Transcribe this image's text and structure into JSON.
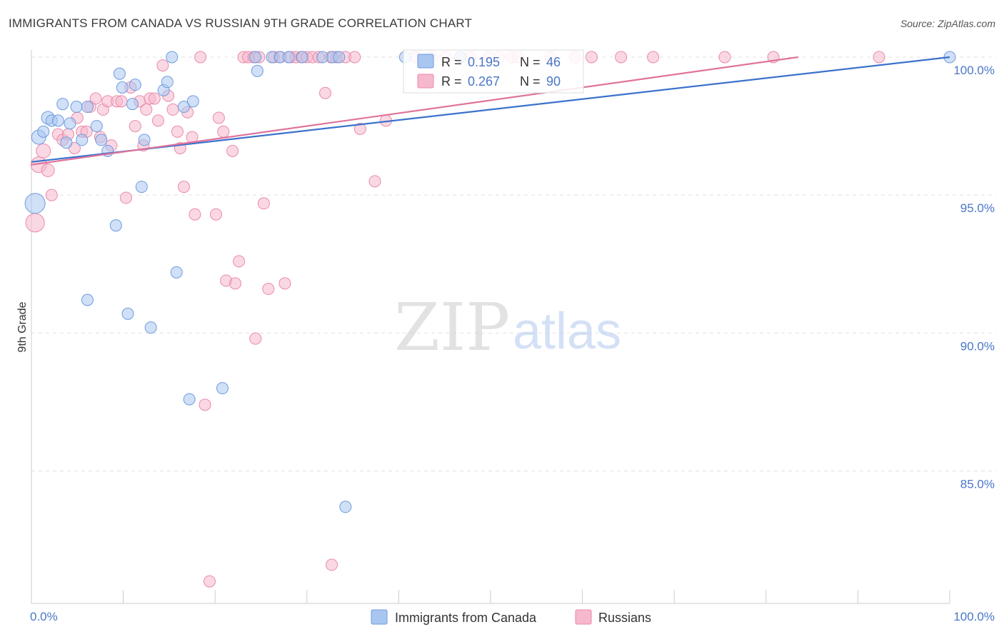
{
  "title": "IMMIGRANTS FROM CANADA VS RUSSIAN 9TH GRADE CORRELATION CHART",
  "source": "Source: ZipAtlas.com",
  "watermark": {
    "zip": "ZIP",
    "atlas": "atlas"
  },
  "colors": {
    "canada_fill": "#a9c6f0",
    "canada_stroke": "#6f9be0",
    "canada_line": "#3b72cc",
    "russia_fill": "#f6b8cc",
    "russia_stroke": "#e98aa9",
    "russia_line": "#e0739a",
    "grid": "#e2e2e2",
    "tick_text": "#4a77c8"
  },
  "stats_box": {
    "rows": [
      {
        "r_label": "R =",
        "r_value": "0.195",
        "n_label": "N =",
        "n_value": "46"
      },
      {
        "r_label": "R =",
        "r_value": "0.267",
        "n_label": "N =",
        "n_value": "90"
      }
    ]
  },
  "chart_data": {
    "type": "scatter",
    "title": "IMMIGRANTS FROM CANADA VS RUSSIAN 9TH GRADE CORRELATION CHART",
    "xlabel": "",
    "ylabel": "9th Grade",
    "xlim": [
      0,
      100
    ],
    "ylim": [
      80.2,
      100.7
    ],
    "x_ticks": [
      0,
      100
    ],
    "x_tick_labels": [
      "0.0%",
      "100.0%"
    ],
    "y_ticks": [
      85,
      90,
      95,
      100
    ],
    "y_tick_labels": [
      "85.0%",
      "90.0%",
      "95.0%",
      "100.0%"
    ],
    "grid": true,
    "legend_position": "bottom-center",
    "series": [
      {
        "name": "Immigrants from Canada",
        "R": 0.195,
        "N": 46,
        "trend": {
          "x0": 0,
          "y0": 96.2,
          "x1": 100,
          "y1": 100.0
        },
        "points": [
          [
            0.4,
            94.7,
            14
          ],
          [
            0.8,
            97.1,
            10
          ],
          [
            1.3,
            97.3,
            8
          ],
          [
            1.8,
            97.8,
            9
          ],
          [
            2.2,
            97.7,
            8
          ],
          [
            2.9,
            97.7,
            8
          ],
          [
            3.4,
            98.3,
            8
          ],
          [
            3.8,
            96.9,
            8
          ],
          [
            4.2,
            97.6,
            8
          ],
          [
            4.9,
            98.2,
            8
          ],
          [
            5.5,
            97.0,
            8
          ],
          [
            6.1,
            98.2,
            8
          ],
          [
            7.1,
            97.5,
            8
          ],
          [
            7.6,
            97.0,
            8
          ],
          [
            8.3,
            96.6,
            8
          ],
          [
            9.2,
            93.9,
            8
          ],
          [
            9.6,
            99.4,
            8
          ],
          [
            9.9,
            98.9,
            8
          ],
          [
            10.5,
            90.7,
            8
          ],
          [
            11.0,
            98.3,
            8
          ],
          [
            11.3,
            99.0,
            8
          ],
          [
            12.0,
            95.3,
            8
          ],
          [
            12.3,
            97.0,
            8
          ],
          [
            13.0,
            90.2,
            8
          ],
          [
            14.4,
            98.8,
            8
          ],
          [
            14.8,
            99.1,
            8
          ],
          [
            15.3,
            100.0,
            8
          ],
          [
            15.8,
            92.2,
            8
          ],
          [
            16.6,
            98.2,
            8
          ],
          [
            17.2,
            87.6,
            8
          ],
          [
            17.6,
            98.4,
            8
          ],
          [
            20.8,
            88.0,
            8
          ],
          [
            24.4,
            100.0,
            8
          ],
          [
            24.6,
            99.5,
            8
          ],
          [
            26.2,
            100.0,
            8
          ],
          [
            27.1,
            100.0,
            8
          ],
          [
            28.0,
            100.0,
            8
          ],
          [
            29.5,
            100.0,
            8
          ],
          [
            31.7,
            100.0,
            8
          ],
          [
            32.8,
            100.0,
            8
          ],
          [
            33.5,
            100.0,
            8
          ],
          [
            34.2,
            83.7,
            8
          ],
          [
            40.7,
            100.0,
            8
          ],
          [
            46.7,
            100.0,
            8
          ],
          [
            100.0,
            100.0,
            8
          ],
          [
            6.1,
            91.2,
            8
          ]
        ]
      },
      {
        "name": "Russians",
        "R": 0.267,
        "N": 90,
        "trend": {
          "x0": 0,
          "y0": 96.1,
          "x1": 83.5,
          "y1": 100.0
        },
        "points": [
          [
            0.4,
            94.0,
            13
          ],
          [
            0.8,
            96.1,
            11
          ],
          [
            1.3,
            96.6,
            10
          ],
          [
            1.8,
            95.9,
            9
          ],
          [
            2.2,
            95.0,
            8
          ],
          [
            2.9,
            97.2,
            8
          ],
          [
            3.4,
            97.0,
            8
          ],
          [
            4.0,
            97.2,
            8
          ],
          [
            4.7,
            96.7,
            8
          ],
          [
            5.0,
            97.8,
            8
          ],
          [
            5.5,
            97.3,
            8
          ],
          [
            6.0,
            97.3,
            8
          ],
          [
            6.4,
            98.2,
            8
          ],
          [
            7.0,
            98.5,
            8
          ],
          [
            7.5,
            97.1,
            8
          ],
          [
            7.8,
            98.1,
            8
          ],
          [
            8.3,
            98.4,
            8
          ],
          [
            8.7,
            96.8,
            8
          ],
          [
            9.3,
            98.4,
            8
          ],
          [
            9.8,
            98.4,
            8
          ],
          [
            10.3,
            94.9,
            8
          ],
          [
            10.8,
            98.9,
            8
          ],
          [
            11.3,
            97.5,
            8
          ],
          [
            11.8,
            98.4,
            8
          ],
          [
            12.2,
            96.8,
            8
          ],
          [
            12.5,
            98.1,
            8
          ],
          [
            12.9,
            98.5,
            8
          ],
          [
            13.4,
            98.5,
            8
          ],
          [
            13.8,
            97.7,
            8
          ],
          [
            14.3,
            99.7,
            8
          ],
          [
            14.9,
            98.6,
            8
          ],
          [
            15.4,
            98.1,
            8
          ],
          [
            15.9,
            97.3,
            8
          ],
          [
            16.2,
            96.7,
            8
          ],
          [
            16.6,
            95.3,
            8
          ],
          [
            17.0,
            98.0,
            8
          ],
          [
            17.5,
            97.1,
            8
          ],
          [
            17.8,
            94.3,
            8
          ],
          [
            18.4,
            100.0,
            8
          ],
          [
            18.9,
            87.4,
            8
          ],
          [
            19.4,
            81.0,
            8
          ],
          [
            20.1,
            94.3,
            8
          ],
          [
            20.4,
            97.8,
            8
          ],
          [
            20.9,
            97.3,
            8
          ],
          [
            21.2,
            91.9,
            8
          ],
          [
            21.9,
            96.6,
            8
          ],
          [
            22.2,
            91.8,
            8
          ],
          [
            22.6,
            92.6,
            8
          ],
          [
            23.1,
            100.0,
            8
          ],
          [
            23.6,
            100.0,
            8
          ],
          [
            24.2,
            100.0,
            8
          ],
          [
            24.8,
            100.0,
            8
          ],
          [
            25.3,
            94.7,
            8
          ],
          [
            25.8,
            91.6,
            8
          ],
          [
            26.4,
            100.0,
            8
          ],
          [
            27.0,
            100.0,
            8
          ],
          [
            27.6,
            91.8,
            8
          ],
          [
            28.2,
            100.0,
            8
          ],
          [
            28.8,
            100.0,
            8
          ],
          [
            29.4,
            100.0,
            8
          ],
          [
            30.0,
            100.0,
            8
          ],
          [
            30.6,
            100.0,
            8
          ],
          [
            31.3,
            100.0,
            8
          ],
          [
            32.0,
            98.7,
            8
          ],
          [
            32.6,
            100.0,
            8
          ],
          [
            33.2,
            100.0,
            8
          ],
          [
            34.2,
            100.0,
            8
          ],
          [
            35.2,
            100.0,
            8
          ],
          [
            35.8,
            97.4,
            8
          ],
          [
            37.4,
            95.5,
            8
          ],
          [
            38.6,
            97.7,
            8
          ],
          [
            41.8,
            100.0,
            8
          ],
          [
            43.6,
            100.0,
            8
          ],
          [
            45.1,
            100.0,
            8
          ],
          [
            46.7,
            100.0,
            8
          ],
          [
            47.8,
            100.0,
            8
          ],
          [
            49.8,
            100.0,
            8
          ],
          [
            50.9,
            100.0,
            8
          ],
          [
            52.3,
            100.0,
            8
          ],
          [
            53.0,
            100.0,
            8
          ],
          [
            56.5,
            100.0,
            8
          ],
          [
            59.2,
            100.0,
            8
          ],
          [
            61.0,
            100.0,
            8
          ],
          [
            64.2,
            100.0,
            8
          ],
          [
            67.7,
            100.0,
            8
          ],
          [
            75.5,
            100.0,
            8
          ],
          [
            80.8,
            100.0,
            8
          ],
          [
            92.3,
            100.0,
            8
          ],
          [
            24.4,
            89.8,
            8
          ],
          [
            32.7,
            81.6,
            8
          ]
        ]
      }
    ]
  }
}
